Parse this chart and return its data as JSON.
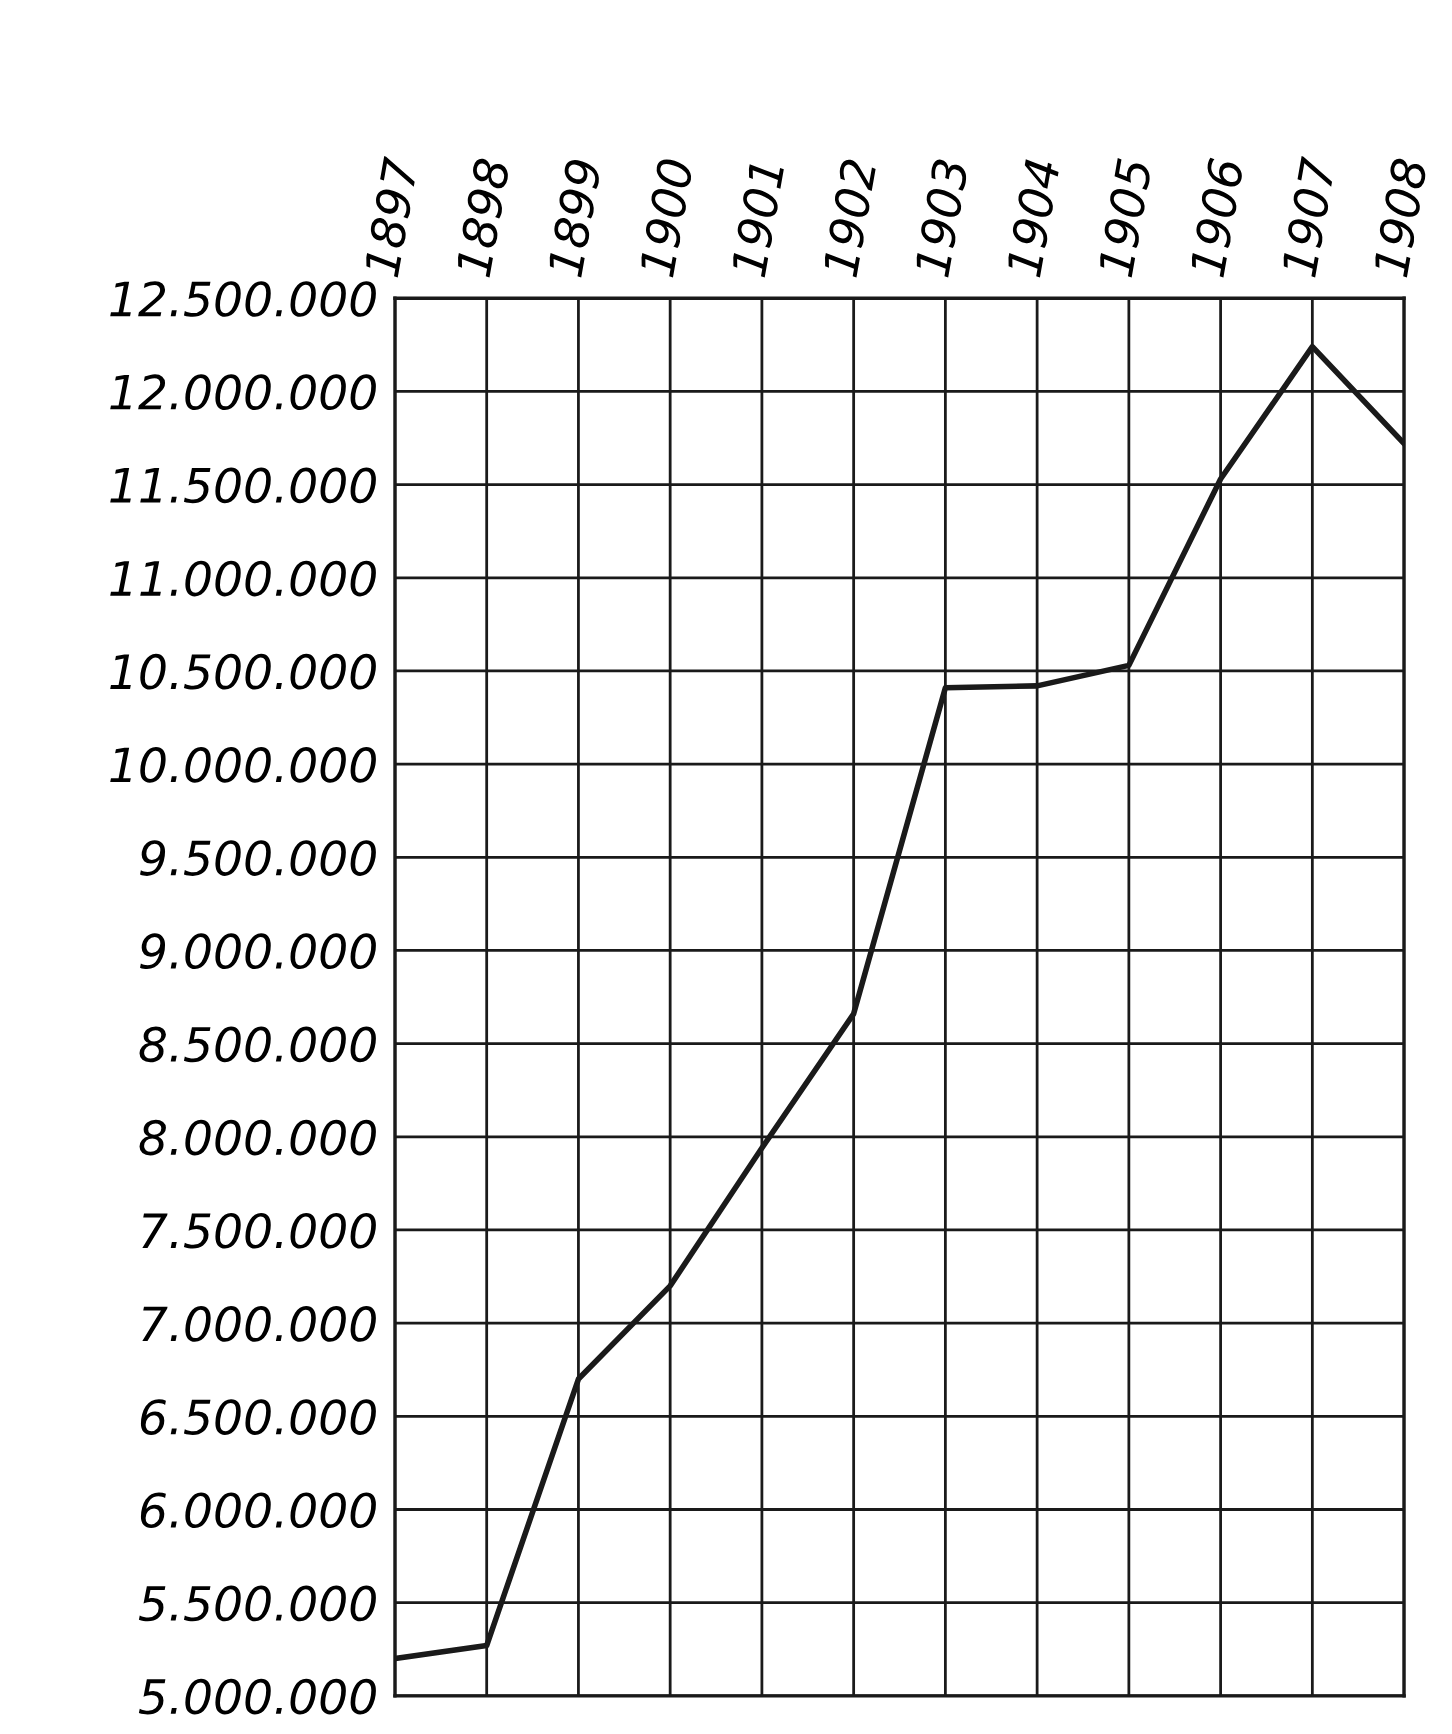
{
  "chart_data": {
    "type": "line",
    "x": [
      1897,
      1898,
      1899,
      1900,
      1901,
      1902,
      1903,
      1904,
      1905,
      1906,
      1907,
      1908
    ],
    "series": [
      {
        "color": "#1a1a1a",
        "values": [
          5200000,
          5270000,
          6700000,
          7200000,
          7940000,
          8660000,
          10410000,
          10420000,
          10530000,
          11530000,
          12240000,
          11720000
        ]
      }
    ],
    "xlim": [
      1897,
      1908
    ],
    "xticks": [
      1897,
      1898,
      1899,
      1900,
      1901,
      1902,
      1903,
      1904,
      1905,
      1906,
      1907,
      1908
    ],
    "ylim": [
      5000000,
      12500000
    ],
    "yticks": [
      {
        "value": 5000000,
        "label": "5.000.000"
      },
      {
        "value": 5500000,
        "label": "5.500.000"
      },
      {
        "value": 6000000,
        "label": "6.000.000"
      },
      {
        "value": 6500000,
        "label": "6.500.000"
      },
      {
        "value": 7000000,
        "label": "7.000.000"
      },
      {
        "value": 7500000,
        "label": "7.500.000"
      },
      {
        "value": 8000000,
        "label": "8.000.000"
      },
      {
        "value": 8500000,
        "label": "8.500.000"
      },
      {
        "value": 9000000,
        "label": "9.000.000"
      },
      {
        "value": 9500000,
        "label": "9.500.000"
      },
      {
        "value": 10000000,
        "label": "10.000.000"
      },
      {
        "value": 10500000,
        "label": "10.500.000"
      },
      {
        "value": 11000000,
        "label": "11.000.000"
      },
      {
        "value": 11500000,
        "label": "11.500.000"
      },
      {
        "value": 12000000,
        "label": "12.000.000"
      },
      {
        "value": 12500000,
        "label": "12.500.000"
      }
    ],
    "grid": true,
    "marker": "none",
    "line_style": "solid"
  }
}
